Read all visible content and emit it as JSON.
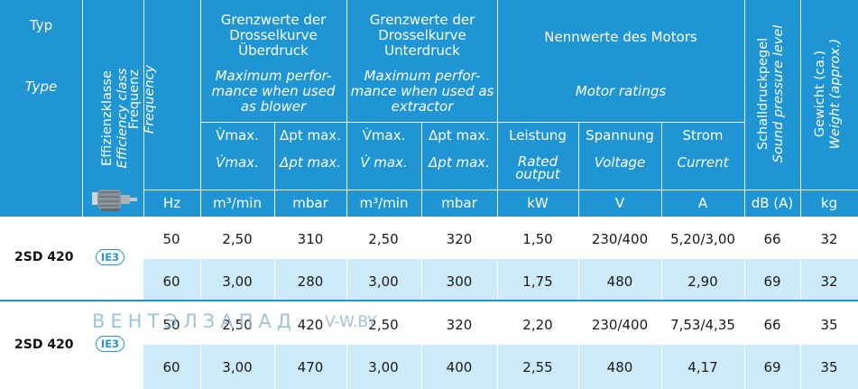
{
  "header": {
    "typ": "Typ",
    "type_en": "Type",
    "efficiency_de": "Effizienzklasse",
    "efficiency_en": "Efficiency class",
    "frequency_de": "Frequenz",
    "frequency_en": "Frequency",
    "overpressure_de": "Grenzwerte der Drosselkurve Überdruck",
    "overpressure_en": "Maximum perfor- mance when used as blower",
    "underpressure_de": "Grenzwerte der Drosselkurve Unterdruck",
    "underpressure_en": "Maximum perfor- mance when used as extractor",
    "motor_de": "Nennwerte des Motors",
    "motor_en": "Motor ratings",
    "sound_de": "Schalldruckpegel",
    "sound_en": "Sound pressure level",
    "weight_de": "Gewicht (ca.)",
    "weight_en": "Weight (approx.)",
    "vmax_de": "V̇max.",
    "vmax_en": "V̇max.",
    "dpt_de": "Δpt max.",
    "dpt_en": "Δpt max.",
    "vmax2_de": "V̇max.",
    "vmax2_en": "V̇ max.",
    "dpt2_de": "Δpt max.",
    "dpt2_en": "Δpt max.",
    "power_de": "Leistung",
    "power_en": "Rated output",
    "voltage_de": "Spannung",
    "voltage_en": "Voltage",
    "current_de": "Strom",
    "current_en": "Current"
  },
  "units": [
    "Hz",
    "m³/min",
    "mbar",
    "m³/min",
    "mbar",
    "kW",
    "V",
    "A",
    "dB (A)",
    "kg"
  ],
  "groups": [
    {
      "model": "2SD 420",
      "efficiency": "IE3",
      "rows": [
        [
          "50",
          "2,50",
          "310",
          "2,50",
          "320",
          "1,50",
          "230/400",
          "5,20/3,00",
          "66",
          "32"
        ],
        [
          "60",
          "3,00",
          "280",
          "3,00",
          "300",
          "1,75",
          "480",
          "2,90",
          "69",
          "32"
        ]
      ]
    },
    {
      "model": "2SD 420",
      "efficiency": "IE3",
      "rows": [
        [
          "50",
          "2,50",
          "420",
          "2,50",
          "320",
          "2,20",
          "230/400",
          "7,53/4,35",
          "66",
          "35"
        ],
        [
          "60",
          "3,00",
          "470",
          "3,00",
          "400",
          "2,55",
          "480",
          "4,17",
          "69",
          "35"
        ]
      ]
    }
  ],
  "watermark": {
    "brand": "ВЕНТЭЛЗАПАД",
    "site": "V-W.BY"
  },
  "colors": {
    "header_bg": "#1f96d3",
    "row_alt_bg": "#cdeaf9",
    "badge": "#1f96d3"
  }
}
